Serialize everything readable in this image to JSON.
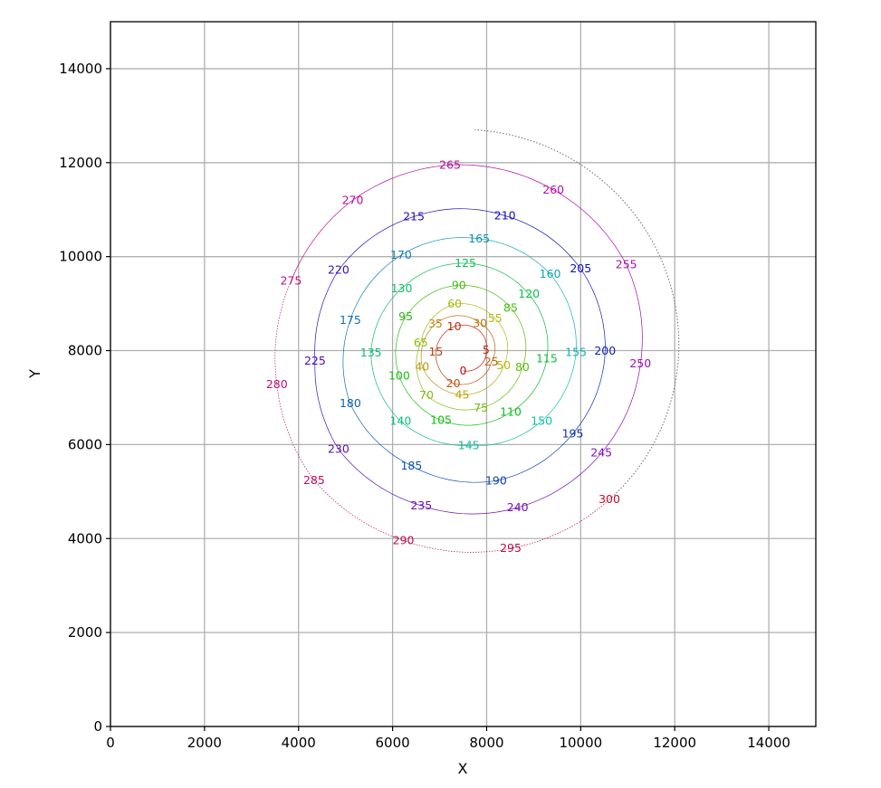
{
  "chart_data": {
    "type": "line",
    "title": "",
    "xlabel": "X",
    "ylabel": "Y",
    "xlim": [
      0,
      15000
    ],
    "ylim": [
      0,
      15000
    ],
    "xticks": [
      0,
      2000,
      4000,
      6000,
      8000,
      10000,
      12000,
      14000
    ],
    "yticks": [
      0,
      2000,
      4000,
      6000,
      8000,
      10000,
      12000,
      14000
    ],
    "xtick_labels": [
      "0",
      "2000",
      "4000",
      "6000",
      "8000",
      "10000",
      "12000",
      "14000"
    ],
    "ytick_labels": [
      "0",
      "2000",
      "4000",
      "6000",
      "8000",
      "10000",
      "12000",
      "14000"
    ],
    "grid": true,
    "description_of_series": "outward spiral of points labelled every 5 steps from 0 to 300, colour shifting red to green to blue to purple to red",
    "points": [
      {
        "label": "0",
        "x": 7500,
        "y": 7570
      },
      {
        "label": "5",
        "x": 7990,
        "y": 8010
      },
      {
        "label": "10",
        "x": 7310,
        "y": 8510
      },
      {
        "label": "15",
        "x": 6920,
        "y": 7970
      },
      {
        "label": "20",
        "x": 7290,
        "y": 7300
      },
      {
        "label": "25",
        "x": 8100,
        "y": 7760
      },
      {
        "label": "30",
        "x": 7860,
        "y": 8580
      },
      {
        "label": "35",
        "x": 6910,
        "y": 8570
      },
      {
        "label": "40",
        "x": 6630,
        "y": 7650
      },
      {
        "label": "45",
        "x": 7480,
        "y": 7060
      },
      {
        "label": "50",
        "x": 8360,
        "y": 7680
      },
      {
        "label": "55",
        "x": 8180,
        "y": 8680
      },
      {
        "label": "60",
        "x": 7320,
        "y": 8990
      },
      {
        "label": "65",
        "x": 6600,
        "y": 8160
      },
      {
        "label": "70",
        "x": 6720,
        "y": 7050
      },
      {
        "label": "75",
        "x": 7880,
        "y": 6780
      },
      {
        "label": "80",
        "x": 8760,
        "y": 7640
      },
      {
        "label": "85",
        "x": 8510,
        "y": 8910
      },
      {
        "label": "90",
        "x": 7410,
        "y": 9390
      },
      {
        "label": "95",
        "x": 6280,
        "y": 8720
      },
      {
        "label": "100",
        "x": 6140,
        "y": 7460
      },
      {
        "label": "105",
        "x": 7030,
        "y": 6520
      },
      {
        "label": "110",
        "x": 8510,
        "y": 6690
      },
      {
        "label": "115",
        "x": 9280,
        "y": 7830
      },
      {
        "label": "120",
        "x": 8900,
        "y": 9200
      },
      {
        "label": "125",
        "x": 7550,
        "y": 9860
      },
      {
        "label": "130",
        "x": 6190,
        "y": 9320
      },
      {
        "label": "135",
        "x": 5540,
        "y": 7950
      },
      {
        "label": "140",
        "x": 6170,
        "y": 6500
      },
      {
        "label": "145",
        "x": 7620,
        "y": 5980
      },
      {
        "label": "150",
        "x": 9170,
        "y": 6500
      },
      {
        "label": "155",
        "x": 9900,
        "y": 7960
      },
      {
        "label": "160",
        "x": 9350,
        "y": 9630
      },
      {
        "label": "165",
        "x": 7840,
        "y": 10380
      },
      {
        "label": "170",
        "x": 6180,
        "y": 10030
      },
      {
        "label": "175",
        "x": 5100,
        "y": 8650
      },
      {
        "label": "180",
        "x": 5100,
        "y": 6870
      },
      {
        "label": "185",
        "x": 6400,
        "y": 5550
      },
      {
        "label": "190",
        "x": 8200,
        "y": 5230
      },
      {
        "label": "195",
        "x": 9830,
        "y": 6230
      },
      {
        "label": "200",
        "x": 10520,
        "y": 7990
      },
      {
        "label": "205",
        "x": 10000,
        "y": 9740
      },
      {
        "label": "210",
        "x": 8390,
        "y": 10870
      },
      {
        "label": "215",
        "x": 6450,
        "y": 10850
      },
      {
        "label": "220",
        "x": 4850,
        "y": 9710
      },
      {
        "label": "225",
        "x": 4350,
        "y": 7780
      },
      {
        "label": "230",
        "x": 4850,
        "y": 5900
      },
      {
        "label": "235",
        "x": 6610,
        "y": 4700
      },
      {
        "label": "240",
        "x": 8660,
        "y": 4660
      },
      {
        "label": "245",
        "x": 10440,
        "y": 5820
      },
      {
        "label": "250",
        "x": 11270,
        "y": 7720
      },
      {
        "label": "255",
        "x": 10970,
        "y": 9830
      },
      {
        "label": "260",
        "x": 9420,
        "y": 11420
      },
      {
        "label": "265",
        "x": 7220,
        "y": 11950
      },
      {
        "label": "270",
        "x": 5150,
        "y": 11200
      },
      {
        "label": "275",
        "x": 3840,
        "y": 9480
      },
      {
        "label": "280",
        "x": 3540,
        "y": 7280
      },
      {
        "label": "285",
        "x": 4330,
        "y": 5240
      },
      {
        "label": "290",
        "x": 6230,
        "y": 3960
      },
      {
        "label": "295",
        "x": 8510,
        "y": 3790
      },
      {
        "label": "300",
        "x": 10610,
        "y": 4830
      }
    ]
  }
}
